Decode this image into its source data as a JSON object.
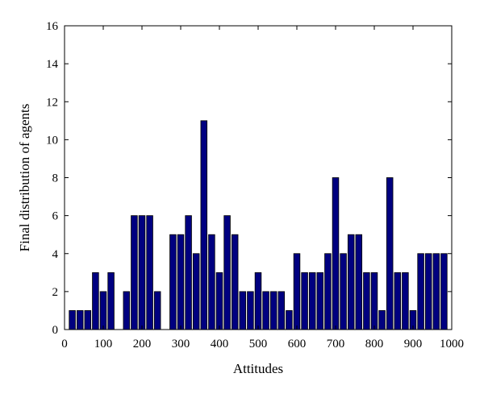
{
  "chart_data": {
    "type": "bar",
    "title": "",
    "xlabel": "Attitudes",
    "ylabel": "Final distribution of agents",
    "xlim": [
      0,
      1000
    ],
    "ylim": [
      0,
      16
    ],
    "xticks": [
      0,
      100,
      200,
      300,
      400,
      500,
      600,
      700,
      800,
      900,
      1000
    ],
    "yticks": [
      0,
      2,
      4,
      6,
      8,
      10,
      12,
      14,
      16
    ],
    "bar_color": "#000080",
    "bar_edge_color": "#000000",
    "bar_width": 16,
    "x": [
      20,
      40,
      60,
      80,
      100,
      120,
      140,
      160,
      180,
      200,
      220,
      240,
      260,
      280,
      300,
      320,
      340,
      360,
      380,
      400,
      420,
      440,
      460,
      480,
      500,
      520,
      540,
      560,
      580,
      600,
      620,
      640,
      660,
      680,
      700,
      720,
      740,
      760,
      780,
      800,
      820,
      840,
      860,
      880,
      900,
      920,
      940,
      960,
      980
    ],
    "values": [
      1,
      1,
      1,
      3,
      2,
      3,
      0,
      2,
      6,
      6,
      6,
      2,
      0,
      5,
      5,
      6,
      4,
      11,
      5,
      3,
      6,
      5,
      2,
      2,
      3,
      2,
      2,
      2,
      1,
      4,
      3,
      3,
      3,
      4,
      8,
      4,
      5,
      5,
      3,
      3,
      1,
      8,
      3,
      3,
      1,
      4,
      4,
      4,
      4
    ]
  }
}
